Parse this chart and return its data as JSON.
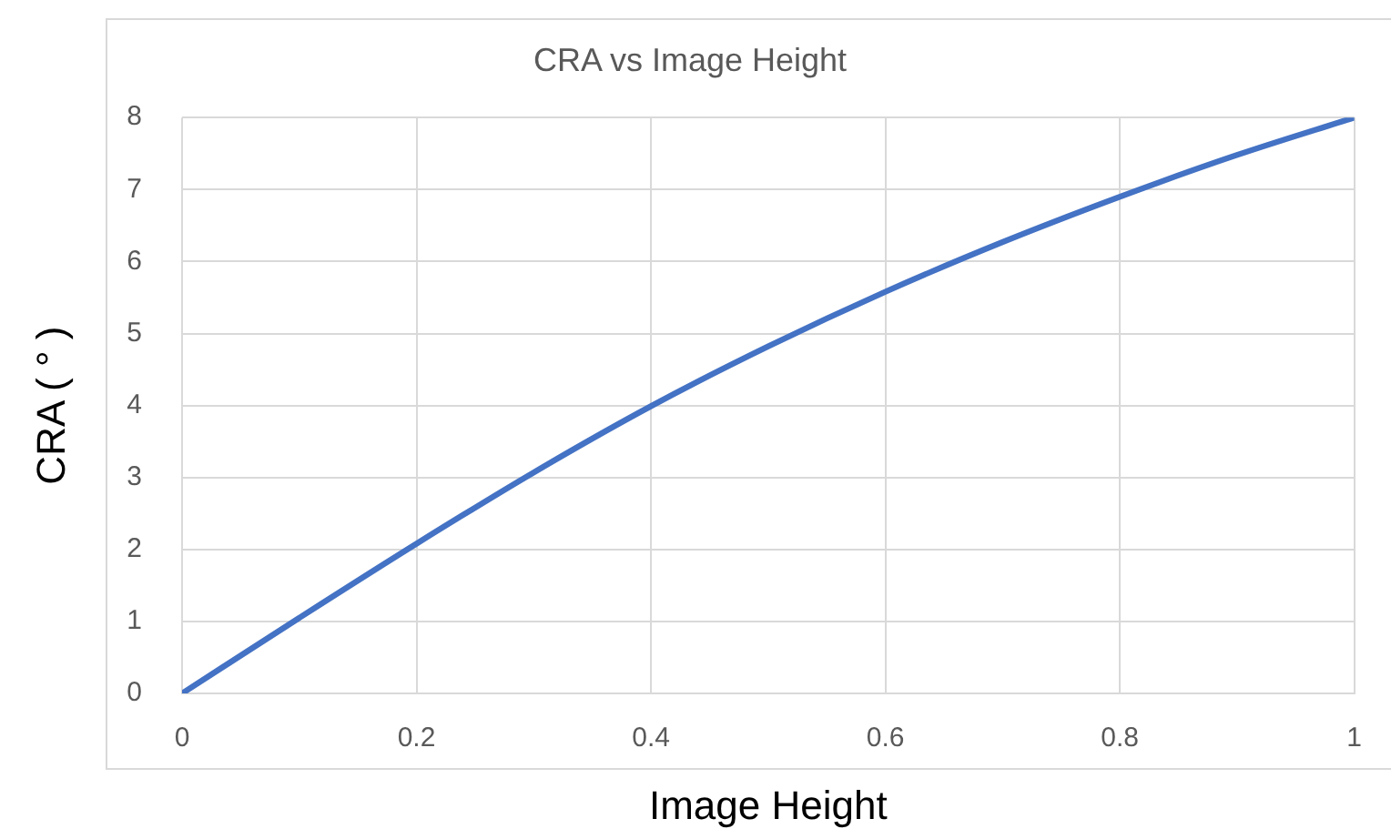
{
  "chart_data": {
    "type": "line",
    "title": "CRA vs Image Height",
    "xlabel": "Image Height",
    "ylabel": "CRA ( ° )",
    "x": [
      0,
      0.1,
      0.2,
      0.3,
      0.4,
      0.5,
      0.6,
      0.7,
      0.8,
      0.9,
      1
    ],
    "series": [
      {
        "color": "#4472c4",
        "values": [
          0,
          1.05,
          2.08,
          3.07,
          3.99,
          4.82,
          5.58,
          6.27,
          6.9,
          7.48,
          8
        ]
      }
    ],
    "xlim": [
      0,
      1
    ],
    "ylim": [
      0,
      8
    ],
    "xticks": [
      0,
      0.2,
      0.4,
      0.6,
      0.8,
      1
    ],
    "yticks": [
      0,
      1,
      2,
      3,
      4,
      5,
      6,
      7,
      8
    ],
    "grid": true
  }
}
